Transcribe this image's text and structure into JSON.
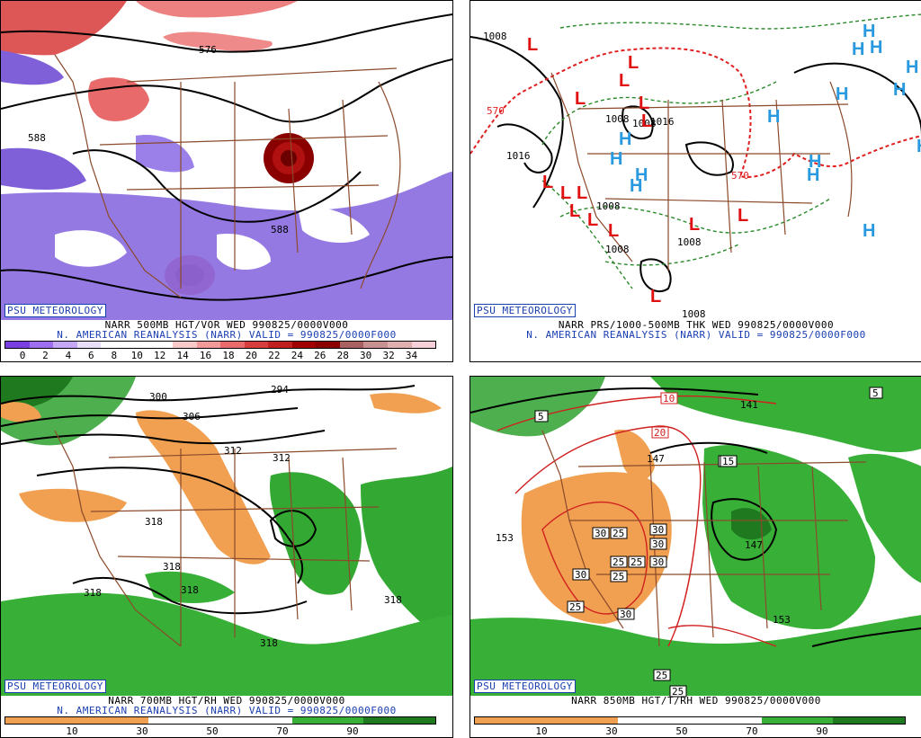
{
  "panels": [
    {
      "badge": "PSU METEOROLOGY",
      "caption1": "NARR 500MB HGT/VOR WED 990825/0000V000",
      "caption2": "N. AMERICAN REANALYSIS (NARR) VALID = 990825/0000F000",
      "colorbar_labels": [
        "0",
        "2",
        "4",
        "6",
        "8",
        "10",
        "12",
        "14",
        "16",
        "18",
        "20",
        "22",
        "24",
        "26",
        "28",
        "30",
        "32",
        "34"
      ],
      "colorbar_colors": [
        "#7a3fe0",
        "#9d6ff0",
        "#c4a8f5",
        "#e8defa",
        "#ffffff",
        "#ffffff",
        "#ffffff",
        "#f7c9c9",
        "#f29a9a",
        "#e86a6a",
        "#d63d3d",
        "#c01f1f",
        "#a00000",
        "#8a0000",
        "#a86060",
        "#c89090",
        "#e0b0b0",
        "#f5d0d8"
      ],
      "contour_labels": [
        "576",
        "588",
        "588"
      ]
    },
    {
      "badge": "PSU METEOROLOGY",
      "caption1": "NARR PRS/1000-500MB THK WED 990825/0000V000",
      "caption2": "N. AMERICAN REANALYSIS (NARR) VALID = 990825/0000F000",
      "contour_labels": [
        "1008",
        "1016",
        "570",
        "1008",
        "1008",
        "570",
        "1008",
        "1008",
        "1008",
        "1008",
        "1016"
      ],
      "low_marker": "L",
      "high_marker": "H"
    },
    {
      "badge": "PSU METEOROLOGY",
      "caption1": "NARR 700MB HGT/RH WED 990825/0000V000",
      "caption2": "N. AMERICAN REANALYSIS (NARR) VALID = 990825/0000F000",
      "colorbar_labels": [
        "10",
        "30",
        "50",
        "70",
        "90"
      ],
      "contour_labels": [
        "300",
        "294",
        "306",
        "312",
        "312",
        "318",
        "318",
        "318",
        "318",
        "318",
        "318"
      ]
    },
    {
      "badge": "PSU METEOROLOGY",
      "caption1": "NARR 850MB HGT/T/RH WED 990825/0000V000",
      "colorbar_labels": [
        "10",
        "30",
        "50",
        "70",
        "90"
      ],
      "contour_labels": [
        "141",
        "147",
        "147",
        "153",
        "153"
      ],
      "temp_boxes": [
        "5",
        "10",
        "15",
        "20",
        "25",
        "30",
        "30",
        "30",
        "25",
        "25",
        "30",
        "25",
        "30",
        "30",
        "25",
        "25",
        "25",
        "15",
        "5"
      ]
    }
  ]
}
